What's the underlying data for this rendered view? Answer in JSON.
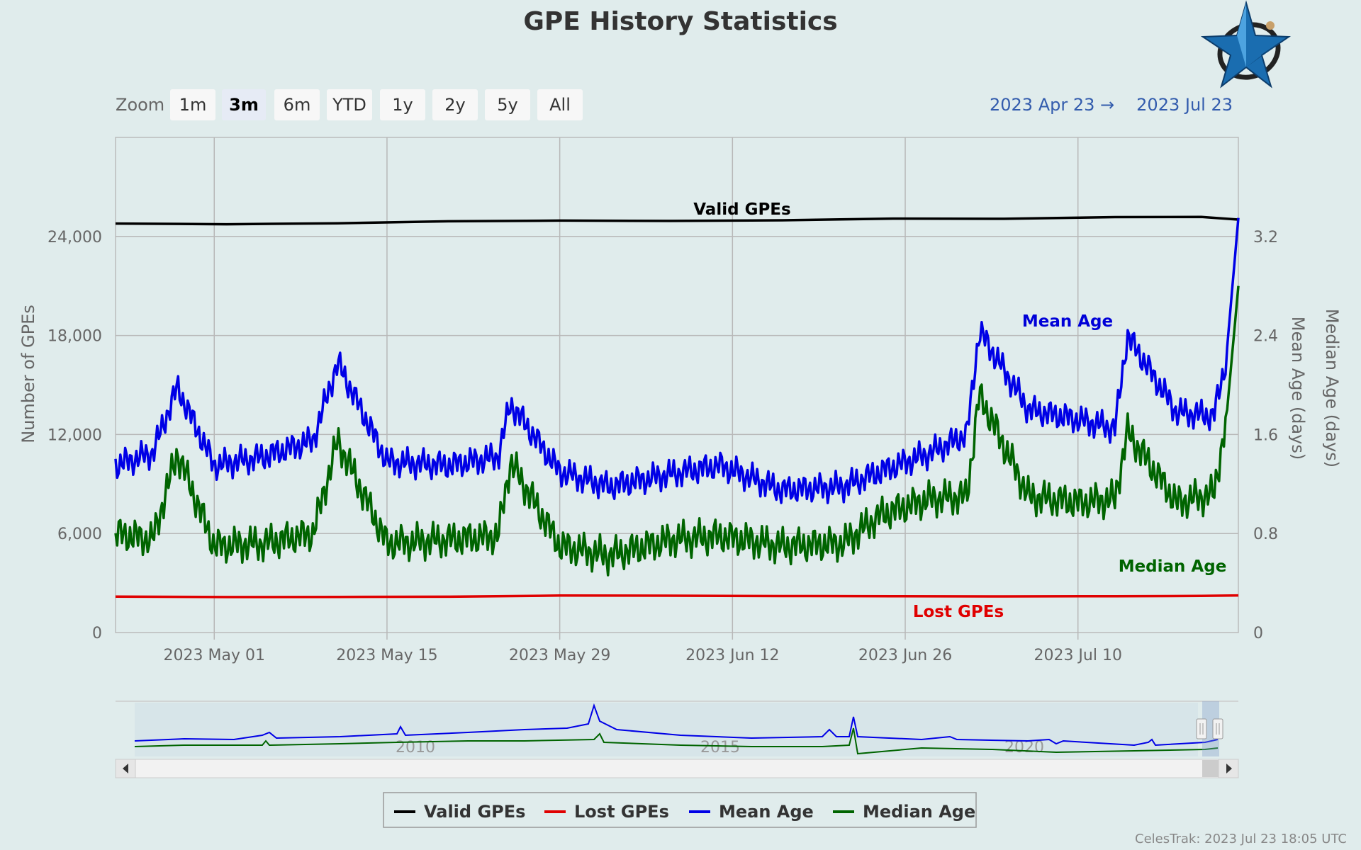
{
  "page": {
    "title": "GPE History Statistics",
    "credit": "CelesTrak: 2023 Jul 23 18:05 UTC",
    "logo_icon": "celestrak-star-logo-icon"
  },
  "zoom": {
    "label": "Zoom",
    "buttons": [
      "1m",
      "3m",
      "6m",
      "YTD",
      "1y",
      "2y",
      "5y",
      "All"
    ],
    "selected": "3m"
  },
  "range": {
    "from": "2023 Apr 23",
    "arrow": "→",
    "to": "2023 Jul 23"
  },
  "navigator": {
    "years": [
      "2010",
      "2015",
      "2020"
    ],
    "left_arrow_icon": "scroll-left-icon",
    "right_arrow_icon": "scroll-right-icon"
  },
  "chart_data": {
    "type": "line",
    "title": "GPE History Statistics",
    "x_range": [
      "2023-04-23",
      "2023-07-23"
    ],
    "x_ticks": [
      "2023 May 01",
      "2023 May 15",
      "2023 May 29",
      "2023 Jun 12",
      "2023 Jun 26",
      "2023 Jul 10"
    ],
    "x_tick_dates": [
      "2023-05-01",
      "2023-05-15",
      "2023-05-29",
      "2023-06-12",
      "2023-06-26",
      "2023-07-10"
    ],
    "y_left": {
      "label": "Number of GPEs",
      "ticks": [
        "0",
        "6,000",
        "12,000",
        "18,000",
        "24,000"
      ],
      "range": [
        0,
        30000
      ]
    },
    "y_right_outer": {
      "label": "Median Age (days)"
    },
    "y_right_inner": {
      "label": "Mean Age (days)",
      "ticks": [
        "0",
        "0.8",
        "1.6",
        "2.4",
        "3.2"
      ],
      "range": [
        0,
        4.0
      ]
    },
    "grid": true,
    "legend_position": "bottom",
    "series": [
      {
        "name": "Valid GPEs",
        "axis": "left",
        "color": "#000000",
        "x": [
          "2023-04-23",
          "2023-05-02",
          "2023-05-11",
          "2023-05-20",
          "2023-05-29",
          "2023-06-07",
          "2023-06-16",
          "2023-06-25",
          "2023-07-04",
          "2023-07-13",
          "2023-07-20",
          "2023-07-23"
        ],
        "y": [
          24780,
          24740,
          24800,
          24920,
          24960,
          24940,
          24980,
          25080,
          25070,
          25170,
          25180,
          25020
        ]
      },
      {
        "name": "Lost GPEs",
        "axis": "left",
        "color": "#e00000",
        "x": [
          "2023-04-23",
          "2023-05-02",
          "2023-05-11",
          "2023-05-20",
          "2023-05-29",
          "2023-06-07",
          "2023-06-16",
          "2023-06-25",
          "2023-07-04",
          "2023-07-13",
          "2023-07-20",
          "2023-07-23"
        ],
        "y": [
          2180,
          2150,
          2160,
          2170,
          2240,
          2230,
          2210,
          2200,
          2190,
          2200,
          2220,
          2250
        ]
      },
      {
        "name": "Mean Age",
        "axis": "right",
        "color": "#0000e6",
        "x": [
          "2023-04-23",
          "2023-04-26",
          "2023-04-28",
          "2023-05-01",
          "2023-05-05",
          "2023-05-09",
          "2023-05-11",
          "2023-05-15",
          "2023-05-20",
          "2023-05-24",
          "2023-05-25",
          "2023-05-29",
          "2023-06-02",
          "2023-06-07",
          "2023-06-11",
          "2023-06-16",
          "2023-06-21",
          "2023-06-24",
          "2023-06-28",
          "2023-07-01",
          "2023-07-02",
          "2023-07-06",
          "2023-07-10",
          "2023-07-13",
          "2023-07-14",
          "2023-07-18",
          "2023-07-21",
          "2023-07-22",
          "2023-07-23"
        ],
        "y": [
          1.35,
          1.45,
          1.98,
          1.35,
          1.42,
          1.55,
          2.18,
          1.38,
          1.35,
          1.42,
          1.85,
          1.3,
          1.18,
          1.28,
          1.35,
          1.15,
          1.18,
          1.3,
          1.45,
          1.6,
          2.44,
          1.8,
          1.72,
          1.65,
          2.4,
          1.78,
          1.75,
          2.2,
          3.35
        ]
      },
      {
        "name": "Median Age",
        "axis": "right",
        "color": "#006400",
        "x": [
          "2023-04-23",
          "2023-04-26",
          "2023-04-28",
          "2023-05-01",
          "2023-05-05",
          "2023-05-09",
          "2023-05-11",
          "2023-05-15",
          "2023-05-20",
          "2023-05-24",
          "2023-05-25",
          "2023-05-29",
          "2023-06-02",
          "2023-06-07",
          "2023-06-11",
          "2023-06-16",
          "2023-06-21",
          "2023-06-24",
          "2023-06-28",
          "2023-07-01",
          "2023-07-02",
          "2023-07-06",
          "2023-07-10",
          "2023-07-13",
          "2023-07-14",
          "2023-07-18",
          "2023-07-21",
          "2023-07-22",
          "2023-07-23"
        ],
        "y": [
          0.8,
          0.75,
          1.45,
          0.7,
          0.72,
          0.8,
          1.55,
          0.72,
          0.75,
          0.78,
          1.38,
          0.7,
          0.62,
          0.75,
          0.78,
          0.7,
          0.72,
          0.95,
          1.08,
          1.1,
          1.92,
          1.1,
          1.05,
          1.08,
          1.62,
          1.05,
          1.12,
          1.7,
          2.8
        ]
      }
    ]
  }
}
